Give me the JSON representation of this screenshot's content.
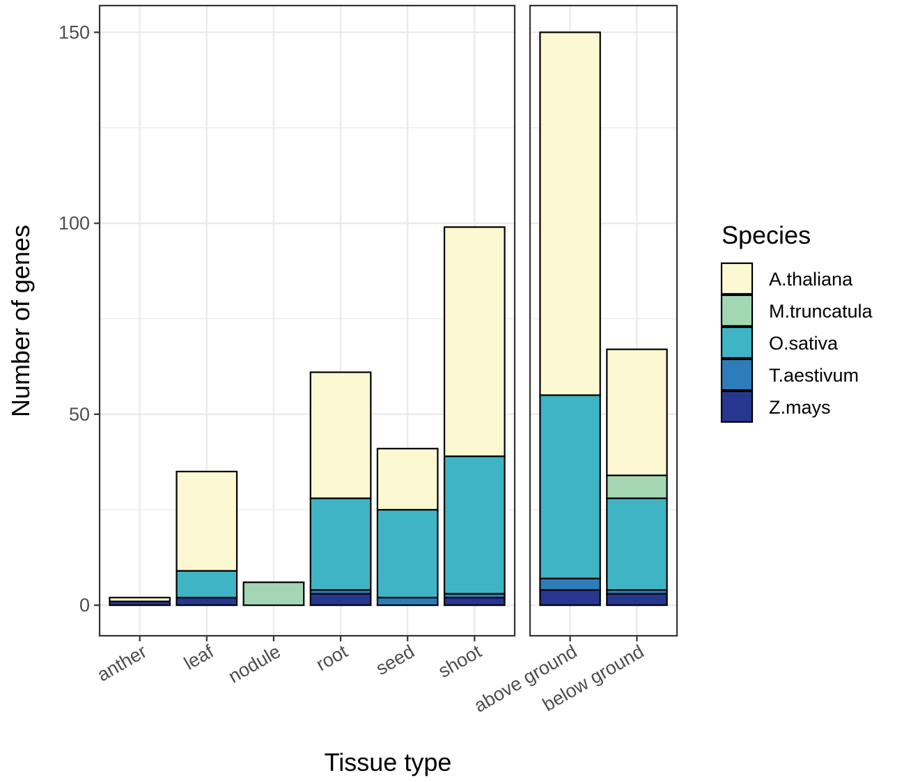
{
  "chart_data": {
    "type": "bar",
    "stacked": true,
    "facets": [
      {
        "categories": [
          "anther",
          "leaf",
          "nodule",
          "root",
          "seed",
          "shoot"
        ],
        "stacks": [
          {
            "Z.mays": 1,
            "T.aestivum": 0,
            "O.sativa": 0,
            "M.truncatula": 0,
            "A.thaliana": 1
          },
          {
            "Z.mays": 2,
            "T.aestivum": 0,
            "O.sativa": 7,
            "M.truncatula": 0,
            "A.thaliana": 26
          },
          {
            "Z.mays": 0,
            "T.aestivum": 0,
            "O.sativa": 0,
            "M.truncatula": 6,
            "A.thaliana": 0
          },
          {
            "Z.mays": 3,
            "T.aestivum": 1,
            "O.sativa": 24,
            "M.truncatula": 0,
            "A.thaliana": 33
          },
          {
            "Z.mays": 0,
            "T.aestivum": 2,
            "O.sativa": 23,
            "M.truncatula": 0,
            "A.thaliana": 16
          },
          {
            "Z.mays": 2,
            "T.aestivum": 1,
            "O.sativa": 36,
            "M.truncatula": 0,
            "A.thaliana": 60
          }
        ]
      },
      {
        "categories": [
          "above ground",
          "below ground"
        ],
        "stacks": [
          {
            "Z.mays": 4,
            "T.aestivum": 3,
            "O.sativa": 48,
            "M.truncatula": 0,
            "A.thaliana": 95
          },
          {
            "Z.mays": 3,
            "T.aestivum": 1,
            "O.sativa": 24,
            "M.truncatula": 6,
            "A.thaliana": 33
          }
        ]
      }
    ],
    "stack_order": [
      "Z.mays",
      "T.aestivum",
      "O.sativa",
      "M.truncatula",
      "A.thaliana"
    ],
    "legend_order": [
      "A.thaliana",
      "M.truncatula",
      "O.sativa",
      "T.aestivum",
      "Z.mays"
    ],
    "colors": {
      "A.thaliana": "#fbf8d2",
      "M.truncatula": "#a3d7b4",
      "O.sativa": "#3fb4c4",
      "T.aestivum": "#2e7dba",
      "Z.mays": "#27378f"
    },
    "xlabel": "Tissue type",
    "ylabel": "Number of genes",
    "ylim": [
      -8,
      157
    ],
    "yticks": [
      0,
      50,
      100,
      150
    ],
    "legend_title": "Species",
    "legend_position": "right",
    "grid": true
  }
}
